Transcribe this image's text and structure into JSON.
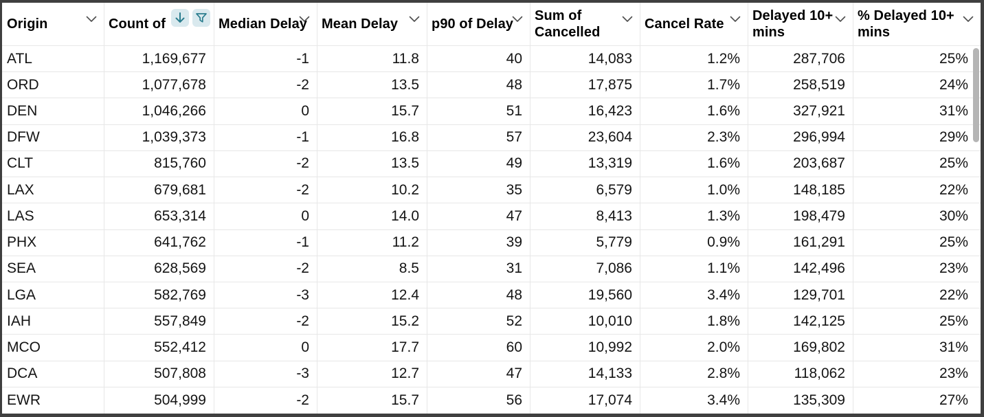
{
  "colors": {
    "accent_teal": "#2a7d8e",
    "icon_bg": "#d9e9ee",
    "border_dark": "#3f3f3f",
    "grid_line": "#e7e7e7",
    "scrollbar": "#b5b5b5"
  },
  "icons": {
    "chevron_down": "⌄",
    "sort_descending": "↓",
    "filter_funnel": "▽"
  },
  "table": {
    "columns": [
      {
        "id": "origin",
        "label": "Origin",
        "align": "left",
        "sorted": false
      },
      {
        "id": "count",
        "label": "Count of",
        "align": "right",
        "sorted": true
      },
      {
        "id": "median-delay",
        "label": "Median Delay",
        "align": "right",
        "sorted": false
      },
      {
        "id": "mean-delay",
        "label": "Mean Delay",
        "align": "right",
        "sorted": false
      },
      {
        "id": "p90-delay",
        "label": "p90 of Delay",
        "align": "right",
        "sorted": false
      },
      {
        "id": "sum-cancelled",
        "label": "Sum of Cancelled",
        "align": "right",
        "sorted": false
      },
      {
        "id": "cancel-rate",
        "label": "Cancel Rate",
        "align": "right",
        "sorted": false
      },
      {
        "id": "delayed-10",
        "label": "Delayed 10+ mins",
        "align": "right",
        "sorted": false
      },
      {
        "id": "pct-delayed-10",
        "label": "% Delayed 10+ mins",
        "align": "right",
        "sorted": false
      }
    ],
    "rows": [
      [
        "ATL",
        "1,169,677",
        "-1",
        "11.8",
        "40",
        "14,083",
        "1.2%",
        "287,706",
        "25%"
      ],
      [
        "ORD",
        "1,077,678",
        "-2",
        "13.5",
        "48",
        "17,875",
        "1.7%",
        "258,519",
        "24%"
      ],
      [
        "DEN",
        "1,046,266",
        "0",
        "15.7",
        "51",
        "16,423",
        "1.6%",
        "327,921",
        "31%"
      ],
      [
        "DFW",
        "1,039,373",
        "-1",
        "16.8",
        "57",
        "23,604",
        "2.3%",
        "296,994",
        "29%"
      ],
      [
        "CLT",
        "815,760",
        "-2",
        "13.5",
        "49",
        "13,319",
        "1.6%",
        "203,687",
        "25%"
      ],
      [
        "LAX",
        "679,681",
        "-2",
        "10.2",
        "35",
        "6,579",
        "1.0%",
        "148,185",
        "22%"
      ],
      [
        "LAS",
        "653,314",
        "0",
        "14.0",
        "47",
        "8,413",
        "1.3%",
        "198,479",
        "30%"
      ],
      [
        "PHX",
        "641,762",
        "-1",
        "11.2",
        "39",
        "5,779",
        "0.9%",
        "161,291",
        "25%"
      ],
      [
        "SEA",
        "628,569",
        "-2",
        "8.5",
        "31",
        "7,086",
        "1.1%",
        "142,496",
        "23%"
      ],
      [
        "LGA",
        "582,769",
        "-3",
        "12.4",
        "48",
        "19,560",
        "3.4%",
        "129,701",
        "22%"
      ],
      [
        "IAH",
        "557,849",
        "-2",
        "15.2",
        "52",
        "10,010",
        "1.8%",
        "142,125",
        "25%"
      ],
      [
        "MCO",
        "552,412",
        "0",
        "17.7",
        "60",
        "10,992",
        "2.0%",
        "169,802",
        "31%"
      ],
      [
        "DCA",
        "507,808",
        "-3",
        "12.7",
        "47",
        "14,133",
        "2.8%",
        "118,062",
        "23%"
      ],
      [
        "EWR",
        "504,999",
        "-2",
        "15.7",
        "56",
        "17,074",
        "3.4%",
        "135,309",
        "27%"
      ]
    ]
  }
}
